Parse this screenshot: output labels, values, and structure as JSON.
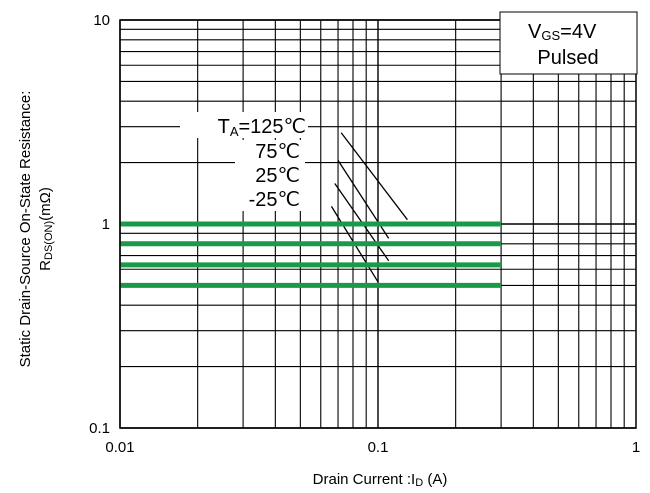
{
  "chart_data": {
    "type": "line",
    "title": "",
    "xlabel": "Drain Current :I",
    "xlabel_sub": "D",
    "xlabel_unit": " (A)",
    "ylabel_line1": "Static Drain-Source On-State Resistance:",
    "ylabel_line2_main": "R",
    "ylabel_line2_sub": "DS(ON)",
    "ylabel_line2_unit": "(mΩ)",
    "x_scale": "log",
    "y_scale": "log",
    "xlim": [
      0.01,
      1
    ],
    "ylim": [
      0.1,
      10
    ],
    "grid": true,
    "x_ticks": [
      {
        "value": 0.01,
        "label": "0.01"
      },
      {
        "value": 0.1,
        "label": "0.1"
      },
      {
        "value": 1,
        "label": "1"
      }
    ],
    "y_ticks": [
      {
        "value": 0.1,
        "label": "0.1"
      },
      {
        "value": 1,
        "label": "1"
      },
      {
        "value": 10,
        "label": "10"
      }
    ],
    "conditions": {
      "vgs_main": "V",
      "vgs_sub": "GS",
      "vgs_value": "=4V",
      "mode": "Pulsed"
    },
    "series": [
      {
        "name": "TA=125℃",
        "label_main": "T",
        "label_sub": "A",
        "label_value": "=125℃",
        "color": "#1a9a48",
        "x": [
          0.01,
          0.3
        ],
        "y": [
          1.0,
          1.0
        ]
      },
      {
        "name": "75℃",
        "label_main": "75℃",
        "label_sub": "",
        "label_value": "",
        "color": "#1a9a48",
        "x": [
          0.01,
          0.3
        ],
        "y": [
          0.8,
          0.8
        ]
      },
      {
        "name": "25℃",
        "label_main": "25℃",
        "label_sub": "",
        "label_value": "",
        "color": "#1a9a48",
        "x": [
          0.01,
          0.3
        ],
        "y": [
          0.63,
          0.63
        ]
      },
      {
        "name": "-25℃",
        "label_main": "-25℃",
        "label_sub": "",
        "label_value": "",
        "color": "#1a9a48",
        "x": [
          0.01,
          0.3
        ],
        "y": [
          0.5,
          0.5
        ]
      }
    ],
    "leaders": [
      {
        "from": [
          0.072,
          2.8
        ],
        "to": [
          0.13,
          1.05
        ]
      },
      {
        "from": [
          0.07,
          2.05
        ],
        "to": [
          0.11,
          0.85
        ]
      },
      {
        "from": [
          0.068,
          1.58
        ],
        "to": [
          0.11,
          0.66
        ]
      },
      {
        "from": [
          0.066,
          1.22
        ],
        "to": [
          0.1,
          0.52
        ]
      }
    ]
  }
}
